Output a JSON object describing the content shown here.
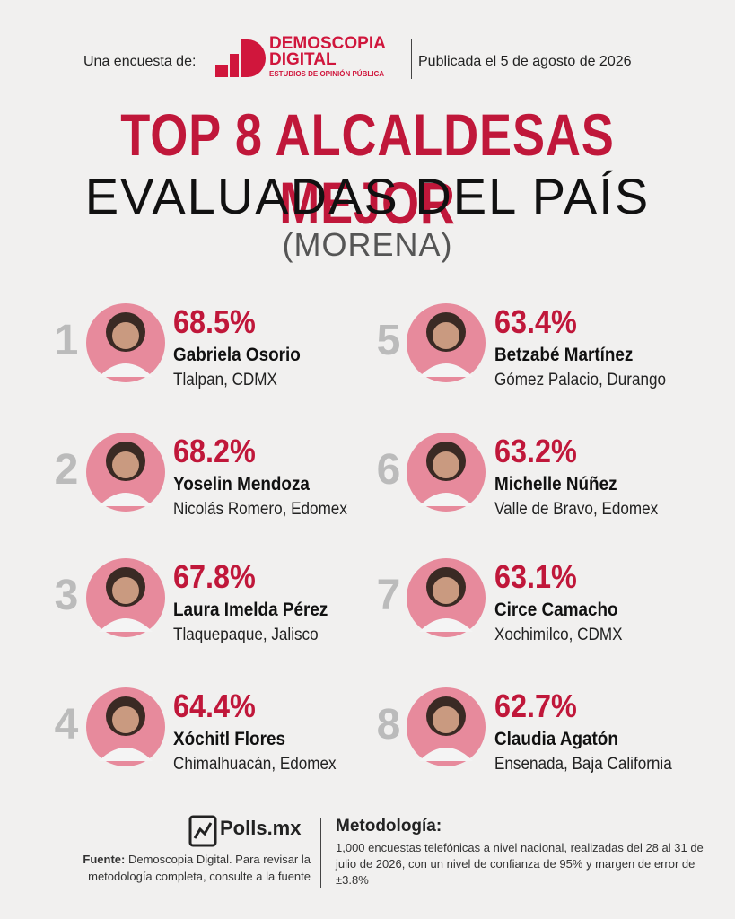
{
  "header": {
    "survey_by": "Una encuesta de:",
    "logo_name_1": "DEMOSCOPIA",
    "logo_name_2": "DIGITAL",
    "logo_tagline": "ESTUDIOS DE OPINIÓN PÚBLICA",
    "published": "Publicada el 5 de agosto de 2026"
  },
  "title": {
    "line1": "TOP 8 ALCALDESAS MEJOR",
    "line2": "EVALUADAS DEL PAÍS",
    "line3": "(MORENA)"
  },
  "entries": [
    {
      "rank": "1",
      "percent": "68.5%",
      "name": "Gabriela Osorio",
      "location": "Tlalpan, CDMX"
    },
    {
      "rank": "2",
      "percent": "68.2%",
      "name": "Yoselin Mendoza",
      "location": "Nicolás Romero, Edomex"
    },
    {
      "rank": "3",
      "percent": "67.8%",
      "name": "Laura Imelda Pérez",
      "location": "Tlaquepaque, Jalisco"
    },
    {
      "rank": "4",
      "percent": "64.4%",
      "name": "Xóchitl Flores",
      "location": "Chimalhuacán, Edomex"
    },
    {
      "rank": "5",
      "percent": "63.4%",
      "name": "Betzabé Martínez",
      "location": "Gómez Palacio, Durango"
    },
    {
      "rank": "6",
      "percent": "63.2%",
      "name": "Michelle Núñez",
      "location": "Valle de Bravo, Edomex"
    },
    {
      "rank": "7",
      "percent": "63.1%",
      "name": "Circe Camacho",
      "location": "Xochimilco, CDMX"
    },
    {
      "rank": "8",
      "percent": "62.7%",
      "name": "Claudia Agatón",
      "location": "Ensenada, Baja California"
    }
  ],
  "footer": {
    "brand": "Polls.mx",
    "source_label": "Fuente:",
    "source_text": "Demoscopia Digital. Para revisar la metodología completa, consulte a la fuente",
    "method_title": "Metodología:",
    "method_text": "1,000 encuestas telefónicas a nivel nacional, realizadas del 28 al 31 de julio de 2026, con un nivel de confianza de 95% y margen de error de ±3.8%"
  }
}
